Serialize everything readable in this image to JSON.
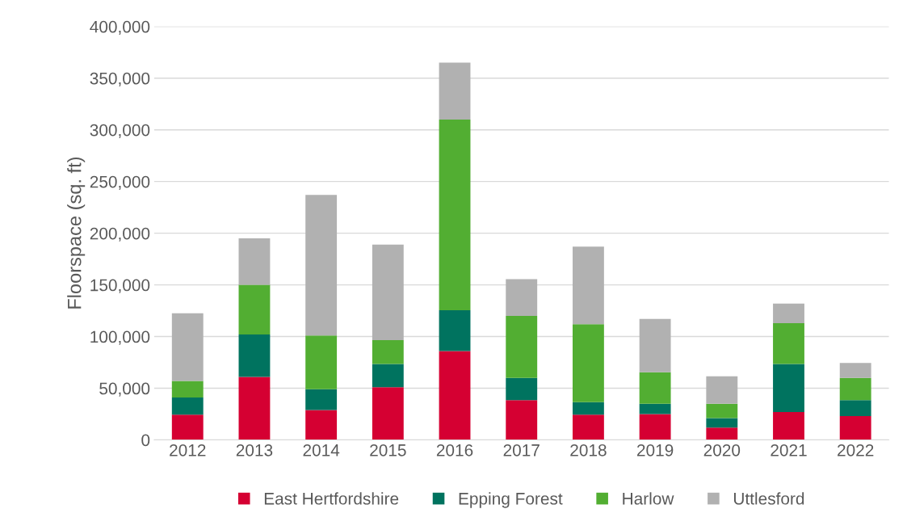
{
  "chart_data": {
    "type": "bar",
    "stacked": true,
    "ylabel": "Floorspace (sq. ft)",
    "categories": [
      "2012",
      "2013",
      "2014",
      "2015",
      "2016",
      "2017",
      "2018",
      "2019",
      "2020",
      "2021",
      "2022"
    ],
    "series": [
      {
        "name": "East Hertfordshire",
        "color": "#d50032",
        "values": [
          24500,
          61000,
          29000,
          51000,
          86000,
          38500,
          24500,
          25000,
          12000,
          27000,
          23000
        ]
      },
      {
        "name": "Epping Forest",
        "color": "#00735f",
        "values": [
          16500,
          41000,
          20000,
          22500,
          39500,
          21500,
          12000,
          10000,
          9000,
          46500,
          15500
        ]
      },
      {
        "name": "Harlow",
        "color": "#52ae32",
        "values": [
          16000,
          48000,
          52000,
          23000,
          184500,
          60000,
          75500,
          30500,
          14000,
          39500,
          21500
        ]
      },
      {
        "name": "Uttlesford",
        "color": "#b1b1b1",
        "values": [
          65500,
          45000,
          136000,
          92500,
          55000,
          35500,
          75000,
          51500,
          26500,
          19000,
          14500
        ]
      }
    ],
    "ylim": [
      0,
      400000
    ],
    "yticks": [
      {
        "value": 0,
        "label": "0"
      },
      {
        "value": 50000,
        "label": "50,000"
      },
      {
        "value": 100000,
        "label": "100,000"
      },
      {
        "value": 150000,
        "label": "150,000"
      },
      {
        "value": 200000,
        "label": "200,000"
      },
      {
        "value": 250000,
        "label": "250,000"
      },
      {
        "value": 300000,
        "label": "300,000"
      },
      {
        "value": 350000,
        "label": "350,000"
      },
      {
        "value": 400000,
        "label": "400,000"
      }
    ],
    "grid": "y",
    "legend": "bottom"
  }
}
